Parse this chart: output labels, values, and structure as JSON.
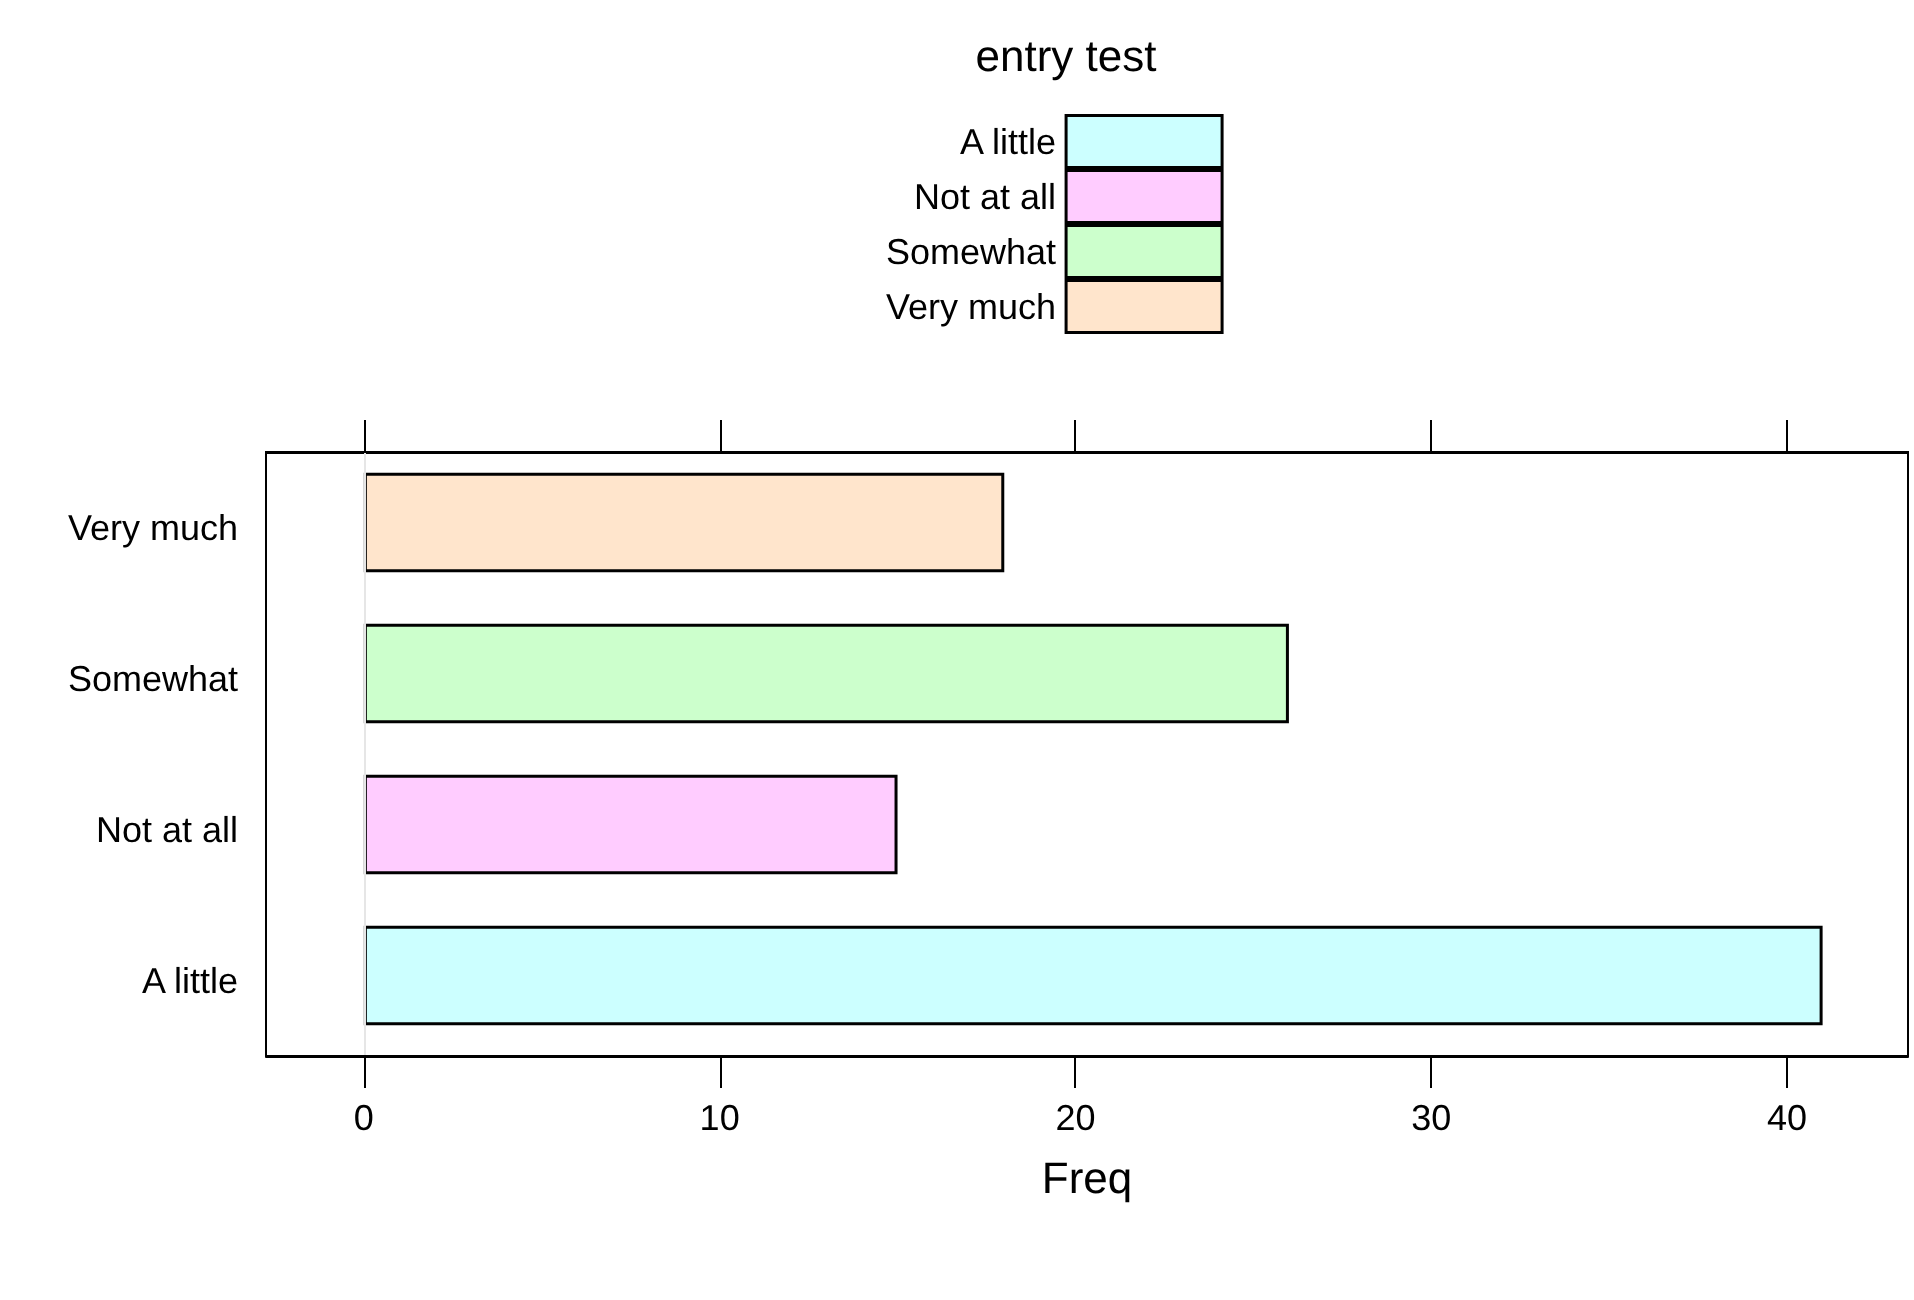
{
  "chart_data": {
    "type": "bar",
    "orientation": "horizontal",
    "stacked": true,
    "legend_title": "entry test",
    "legend": "top",
    "xlabel": "Freq",
    "categories": [
      "Very much",
      "Somewhat",
      "Not at all",
      "A little"
    ],
    "series": [
      {
        "name": "A little",
        "color": "#ccffff",
        "values": [
          null,
          null,
          null,
          41
        ]
      },
      {
        "name": "Not at all",
        "color": "#ffccff",
        "values": [
          null,
          null,
          15,
          null
        ]
      },
      {
        "name": "Somewhat",
        "color": "#ccffcc",
        "values": [
          null,
          26,
          null,
          null
        ]
      },
      {
        "name": "Very much",
        "color": "#ffe5cc",
        "values": [
          18,
          null,
          null,
          null
        ]
      }
    ],
    "xlim": [
      -2.75,
      43.4
    ],
    "xticks": [
      0,
      10,
      20,
      30,
      40
    ],
    "ref_lines": [
      {
        "axis": "x",
        "value": 0,
        "color": "#e6e6e6"
      }
    ],
    "grid": false
  }
}
